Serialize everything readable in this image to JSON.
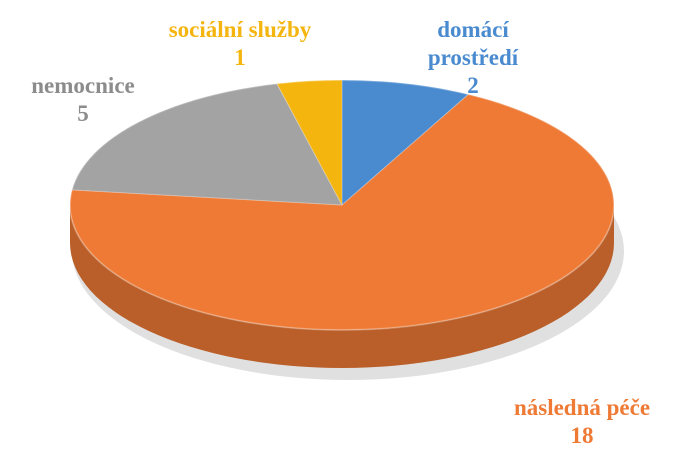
{
  "chart_data": {
    "type": "pie",
    "style": "3d",
    "title": "",
    "slices": [
      {
        "name": "domácí prostředí",
        "value": 2,
        "color": "#4a8bd0"
      },
      {
        "name": "následná péče",
        "value": 18,
        "color": "#ee7a35"
      },
      {
        "name": "nemocnice",
        "value": 5,
        "color": "#a3a3a3"
      },
      {
        "name": "sociální služby",
        "value": 1,
        "color": "#f5b50f"
      }
    ],
    "labels": {
      "slice_0": {
        "name": "domácí",
        "name2": "prostředí",
        "value": "2"
      },
      "slice_1": {
        "name": "následná péče",
        "value": "18"
      },
      "slice_2": {
        "name": "nemocnice",
        "value": "5"
      },
      "slice_3": {
        "name": "sociální služby",
        "value": "1"
      }
    }
  }
}
